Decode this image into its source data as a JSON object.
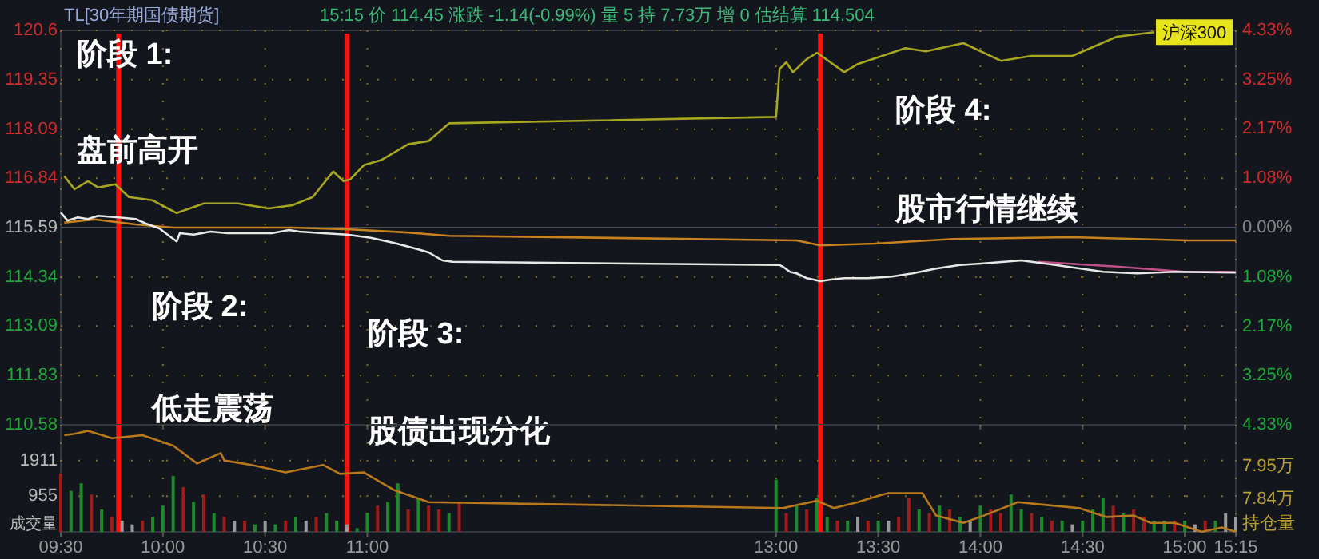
{
  "chart_data": [
    {
      "type": "line",
      "title": "TL[30年期国债期货]",
      "subtitle": "15:15  价 114.45  涨跌 -1.14(-0.99%)  量 5  持 7.73万  增 0  估结算 114.504",
      "annotations": [
        "阶段 1:",
        "盘前高开",
        "阶段 2:",
        "低走震荡",
        "阶段 3:",
        "股债出现分化",
        "阶段 4:",
        "股市行情继续"
      ],
      "xlim": [
        9.5,
        15.25
      ],
      "xticks": [
        {
          "value": 9.5,
          "label": null
        },
        {
          "value": 10,
          "label": null
        },
        {
          "value": 10.5,
          "label": null
        },
        {
          "value": 11,
          "label": null
        },
        {
          "value": 13,
          "label": null
        },
        {
          "value": 13.5,
          "label": null
        },
        {
          "value": 14,
          "label": null
        },
        {
          "value": 14.5,
          "label": null
        },
        {
          "value": 15,
          "label": null
        },
        {
          "value": 15.25,
          "label": null
        }
      ],
      "tick_labels": "y",
      "ylim": [
        110.58,
        120.6
      ],
      "yticks": [
        110.58,
        111.83,
        113.09,
        114.34,
        115.59,
        116.84,
        118.09,
        119.35,
        120.6
      ],
      "y2lim": [
        -4.33,
        4.33
      ],
      "y2ticks": [
        {
          "value": -4.33,
          "label": "4.33%"
        },
        {
          "value": -3.25,
          "label": "3.25%"
        },
        {
          "value": -2.17,
          "label": "2.17%"
        },
        {
          "value": -1.08,
          "label": "1.08%"
        },
        {
          "value": 0,
          "label": "0.00%"
        },
        {
          "value": 1.08,
          "label": "1.08%"
        },
        {
          "value": 2.17,
          "label": "2.17%"
        },
        {
          "value": 3.25,
          "label": "3.25%"
        },
        {
          "value": 4.33,
          "label": "4.33%"
        }
      ],
      "grid": true,
      "ref_lines": [
        {
          "axis": "y",
          "value": 115.59,
          "color": "#4a4e56"
        },
        {
          "axis": "x",
          "value": 9.783,
          "color": "#ff1010"
        },
        {
          "axis": "x",
          "value": 10.9,
          "color": "#ff1010"
        },
        {
          "axis": "x",
          "value": 13.217,
          "color": "#ff1010"
        }
      ],
      "series": [
        {
          "color": "#c8821e",
          "axis": "y2",
          "x": [
            9.517,
            9.667,
            9.867,
            10.05,
            10.25,
            10.633,
            10.917,
            11.2,
            11.4,
            13.1,
            13.217,
            13.483,
            13.867,
            14.45,
            15.017,
            15.25
          ],
          "values": [
            0.11,
            0.18,
            0.07,
            0,
            0,
            0,
            -0.04,
            -0.11,
            -0.18,
            -0.28,
            -0.39,
            -0.35,
            -0.25,
            -0.21,
            -0.28,
            -0.28
          ]
        },
        {
          "name": "沪深300",
          "color": "#a8a820",
          "axis": "y2",
          "x": [
            9.517,
            9.567,
            9.633,
            9.683,
            9.767,
            9.833,
            9.95,
            10.067,
            10.2,
            10.367,
            10.517,
            10.633,
            10.733,
            10.833,
            10.883,
            10.917,
            10.983,
            11.067,
            11.2,
            11.3,
            11.4,
            13.0,
            13.017,
            13.05,
            13.083,
            13.15,
            13.2,
            13.333,
            13.4,
            13.633,
            13.733,
            13.917,
            14.1,
            14.25,
            14.45,
            14.667,
            14.85
          ],
          "values": [
            1.13,
            0.84,
            1.02,
            0.88,
            0.95,
            0.67,
            0.6,
            0.32,
            0.53,
            0.53,
            0.42,
            0.49,
            0.67,
            1.23,
            1.02,
            1.06,
            1.37,
            1.48,
            1.83,
            1.9,
            2.29,
            2.43,
            3.48,
            3.63,
            3.41,
            3.7,
            3.84,
            3.41,
            3.59,
            3.94,
            3.87,
            4.05,
            3.66,
            3.77,
            3.77,
            4.19,
            4.29
          ]
        },
        {
          "color": "#c0508a",
          "x": [
            14.283,
            14.667,
            15.0,
            15.25
          ],
          "values": [
            114.72,
            114.6,
            114.47,
            114.47
          ]
        },
        {
          "color": "#e8e8e8",
          "x": [
            9.5,
            9.533,
            9.583,
            9.633,
            9.683,
            9.783,
            9.867,
            9.917,
            9.983,
            10.033,
            10.067,
            10.083,
            10.15,
            10.233,
            10.317,
            10.433,
            10.533,
            10.617,
            10.667,
            10.783,
            10.9,
            11.017,
            11.133,
            11.25,
            11.3,
            11.367,
            11.417,
            13.017,
            13.033,
            13.067,
            13.1,
            13.15,
            13.183,
            13.217,
            13.267,
            13.333,
            13.45,
            13.567,
            13.667,
            13.783,
            13.9,
            14.017,
            14.2,
            14.367,
            14.6,
            14.767,
            14.95,
            15.25
          ],
          "values": [
            115.97,
            115.77,
            115.85,
            115.81,
            115.89,
            115.85,
            115.81,
            115.69,
            115.57,
            115.37,
            115.24,
            115.45,
            115.41,
            115.49,
            115.45,
            115.45,
            115.45,
            115.53,
            115.49,
            115.45,
            115.41,
            115.33,
            115.2,
            115.04,
            114.96,
            114.76,
            114.72,
            114.64,
            114.6,
            114.47,
            114.43,
            114.31,
            114.27,
            114.23,
            114.27,
            114.31,
            114.31,
            114.35,
            114.43,
            114.55,
            114.64,
            114.68,
            114.76,
            114.64,
            114.47,
            114.43,
            114.47,
            114.45
          ]
        }
      ]
    },
    {
      "type": "bar",
      "ylabel": "成交量",
      "y2label": "持仓量",
      "xlim": [
        9.5,
        15.25
      ],
      "xticks": [
        {
          "value": 9.5,
          "label": "09:30"
        },
        {
          "value": 10,
          "label": "10:00"
        },
        {
          "value": 10.5,
          "label": "10:30"
        },
        {
          "value": 11,
          "label": "11:00"
        },
        {
          "value": 13,
          "label": "13:00"
        },
        {
          "value": 13.5,
          "label": "13:30"
        },
        {
          "value": 14,
          "label": "14:00"
        },
        {
          "value": 14.5,
          "label": "14:30"
        },
        {
          "value": 15,
          "label": "15:00"
        },
        {
          "value": 15.25,
          "label": "15:15"
        }
      ],
      "ylim": [
        0,
        2866
      ],
      "yticks": [
        955,
        1911
      ],
      "y2lim": [
        7.73,
        8.09
      ],
      "y2ticks": [
        {
          "value": 7.84,
          "label": "7.84万"
        },
        {
          "value": 7.95,
          "label": "7.95万"
        }
      ],
      "grid": true,
      "ref_lines": [
        {
          "axis": "x",
          "value": 9.783,
          "color": "#ff1010"
        },
        {
          "axis": "x",
          "value": 10.9,
          "color": "#ff1010"
        },
        {
          "axis": "x",
          "value": 13.217,
          "color": "#ff1010"
        }
      ],
      "series": [
        {
          "x": [
            9.5,
            9.55,
            9.6,
            9.65,
            9.7,
            9.75,
            9.8,
            9.85,
            9.9,
            9.95,
            10.0,
            10.05,
            10.1,
            10.15,
            10.2,
            10.25,
            10.3,
            10.35,
            10.4,
            10.45,
            10.5,
            10.55,
            10.6,
            10.65,
            10.7,
            10.75,
            10.8,
            10.85,
            10.9,
            10.95,
            11.0,
            11.05,
            11.1,
            11.15,
            11.2,
            11.25,
            11.3,
            11.35,
            11.4,
            11.45,
            13.0,
            13.05,
            13.1,
            13.15,
            13.2,
            13.25,
            13.3,
            13.35,
            13.4,
            13.45,
            13.5,
            13.55,
            13.6,
            13.65,
            13.7,
            13.75,
            13.8,
            13.85,
            13.9,
            13.95,
            14.0,
            14.05,
            14.1,
            14.15,
            14.2,
            14.25,
            14.3,
            14.35,
            14.4,
            14.45,
            14.5,
            14.55,
            14.6,
            14.65,
            14.7,
            14.75,
            14.8,
            14.85,
            14.9,
            14.95,
            15.0,
            15.05,
            15.1,
            15.15,
            15.2,
            15.25
          ],
          "values": [
            1560,
            1100,
            1300,
            1000,
            600,
            400,
            300,
            200,
            300,
            400,
            700,
            1500,
            1200,
            800,
            1000,
            500,
            400,
            300,
            300,
            200,
            300,
            200,
            300,
            400,
            300,
            400,
            500,
            300,
            200,
            100,
            500,
            700,
            800,
            1300,
            600,
            900,
            700,
            600,
            500,
            800,
            1400,
            500,
            700,
            600,
            900,
            400,
            300,
            300,
            400,
            300,
            300,
            300,
            400,
            900,
            600,
            500,
            700,
            600,
            400,
            300,
            700,
            600,
            500,
            1000,
            600,
            500,
            400,
            300,
            300,
            200,
            300,
            600,
            900,
            700,
            500,
            600,
            400,
            300,
            300,
            300,
            300,
            200,
            300,
            300,
            500,
            400
          ],
          "colors": [
            "#a31a1a",
            "#1c8a2c",
            "#1c8a2c",
            "#a31a1a",
            "#1c8a2c",
            "#a31a1a",
            "#9a9a9a",
            "#9a9a9a",
            "#a31a1a",
            "#1c8a2c",
            "#1c8a2c",
            "#1c8a2c",
            "#a31a1a",
            "#1c8a2c",
            "#a31a1a",
            "#1c8a2c",
            "#a31a1a",
            "#9a9a9a",
            "#a31a1a",
            "#1c8a2c",
            "#9a9a9a",
            "#1c8a2c",
            "#a31a1a",
            "#1c8a2c",
            "#9a9a9a",
            "#a31a1a",
            "#1c8a2c",
            "#1c8a2c",
            "#9a9a9a",
            "#1c8a2c",
            "#1c8a2c",
            "#a31a1a",
            "#1c8a2c",
            "#1c8a2c",
            "#a31a1a",
            "#1c8a2c",
            "#a31a1a",
            "#a31a1a",
            "#1c8a2c",
            "#a31a1a",
            "#1c8a2c",
            "#a31a1a",
            "#1c8a2c",
            "#a31a1a",
            "#1c8a2c",
            "#1c8a2c",
            "#a31a1a",
            "#1c8a2c",
            "#9a9a9a",
            "#a31a1a",
            "#1c8a2c",
            "#9a9a9a",
            "#a31a1a",
            "#a31a1a",
            "#1c8a2c",
            "#a31a1a",
            "#1c8a2c",
            "#a31a1a",
            "#1c8a2c",
            "#9a9a9a",
            "#1c8a2c",
            "#a31a1a",
            "#a31a1a",
            "#1c8a2c",
            "#1c8a2c",
            "#a31a1a",
            "#1c8a2c",
            "#a31a1a",
            "#1c8a2c",
            "#9a9a9a",
            "#1c8a2c",
            "#1c8a2c",
            "#1c8a2c",
            "#a31a1a",
            "#1c8a2c",
            "#a31a1a",
            "#a31a1a",
            "#1c8a2c",
            "#1c8a2c",
            "#a31a1a",
            "#1c8a2c",
            "#9a9a9a",
            "#a31a1a",
            "#1c8a2c",
            "#9a9a9a",
            "#9a9a9a"
          ]
        },
        {
          "type": "line",
          "axis": "y2",
          "color": "#b8781c",
          "x": [
            9.517,
            9.567,
            9.633,
            9.75,
            9.9,
            10.05,
            10.167,
            10.283,
            10.3,
            10.433,
            10.6,
            10.783,
            10.867,
            10.983,
            11.133,
            11.3,
            13.033,
            13.2,
            13.283,
            13.4,
            13.517,
            13.55,
            13.717,
            13.783,
            13.917,
            14.017,
            14.183,
            14.333,
            14.483,
            14.617,
            14.75,
            14.833,
            14.95,
            15.083,
            15.183,
            15.25
          ],
          "values": [
            8.055,
            8.06,
            8.07,
            8.045,
            8.055,
            8.02,
            7.96,
            7.995,
            7.97,
            7.955,
            7.93,
            7.955,
            7.925,
            7.93,
            7.87,
            7.83,
            7.81,
            7.835,
            7.81,
            7.83,
            7.855,
            7.86,
            7.86,
            7.785,
            7.76,
            7.785,
            7.83,
            7.82,
            7.81,
            7.78,
            7.785,
            7.76,
            7.76,
            7.73,
            7.745,
            7.73
          ]
        }
      ]
    }
  ]
}
